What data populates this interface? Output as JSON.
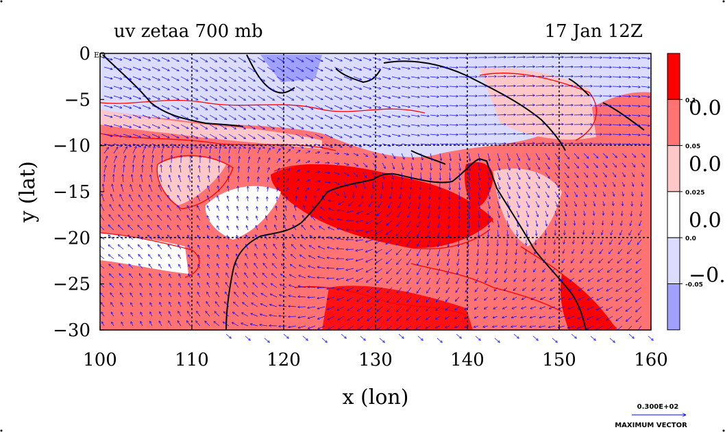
{
  "chart_data": {
    "type": "heatmap",
    "title_left": "uv zetaa 700 mb",
    "title_right": "17 Jan 12Z",
    "xlabel": "x (lon)",
    "ylabel": "y (lat)",
    "xlim": [
      100,
      160
    ],
    "ylim": [
      -30,
      0
    ],
    "x_ticks": [
      100,
      110,
      120,
      130,
      140,
      150,
      160
    ],
    "y_ticks": [
      0,
      -5,
      -10,
      -15,
      -20,
      -25,
      -30
    ],
    "x_tick_labels": [
      "100",
      "110",
      "120",
      "130",
      "140",
      "150",
      "160"
    ],
    "y_tick_labels": [
      "0",
      "−5",
      "−10",
      "−15",
      "−20",
      "−25",
      "−30"
    ],
    "y_zero_suffix": "EQ",
    "grid_lon": [
      110,
      120,
      130,
      140,
      150
    ],
    "grid_lat": [
      -10,
      -20
    ],
    "grid": true,
    "colorbar": {
      "bands": [
        {
          "color": "#ff0000"
        },
        {
          "color": "#ff7373"
        },
        {
          "color": "#ffc8c8"
        },
        {
          "color": "#ffffff"
        },
        {
          "color": "#dcdcff"
        },
        {
          "color": "#a0a0ff"
        }
      ],
      "small_labels": [
        "0.1",
        "0.05",
        "0.025",
        "0.0",
        "-0.05"
      ],
      "big_labels": [
        "0.0",
        "0.0",
        "0.0",
        "−0."
      ]
    },
    "vector": {
      "magnitude_label": "0.300E+02",
      "caption": "MAXIMUM VECTOR",
      "color": "#0000ff"
    },
    "colors": {
      "contour": "#ff0000",
      "coast": "#000000",
      "grid": "#000000"
    }
  }
}
